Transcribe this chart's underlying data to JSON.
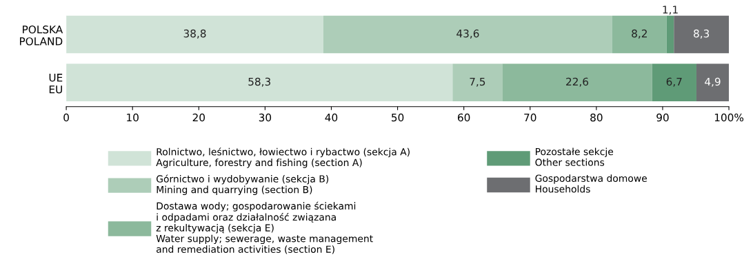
{
  "chart_data": {
    "type": "bar",
    "orientation": "horizontal",
    "stacked": true,
    "categories": [
      "POLSKA\nPOLAND",
      "UE\nEU"
    ],
    "series": [
      {
        "name": "Rolnictwo, leśnictwo, łowiectwo i rybactwo (sekcja A)\nAgriculture, forestry and fishing (section A)",
        "color": "#d0e3d7",
        "values": [
          38.8,
          58.3
        ],
        "value_labels": [
          "38,8",
          "58,3"
        ]
      },
      {
        "name": "Górnictwo i wydobywanie (sekcja B)\nMining and quarrying (section B)",
        "color": "#adcdb8",
        "values": [
          43.6,
          7.5
        ],
        "value_labels": [
          "43,6",
          "7,5"
        ]
      },
      {
        "name": "Dostawa wody; gospodarowanie ściekami\ni odpadami oraz działalność związana\nz rekultywacją (sekcja E)\nWater supply; sewerage, waste management\nand remediation activities (section E)",
        "color": "#8cb99c",
        "values": [
          8.2,
          22.6
        ],
        "value_labels": [
          "8,2",
          "22,6"
        ]
      },
      {
        "name": "Pozostałe sekcje\nOther sections",
        "color": "#5f9b77",
        "values": [
          1.1,
          6.7
        ],
        "value_labels": [
          "1,1",
          "6,7"
        ]
      },
      {
        "name": "Gospodarstwa domowe\nHouseholds",
        "color": "#6d6e71",
        "values": [
          8.3,
          4.9
        ],
        "value_labels": [
          "8,3",
          "4,9"
        ]
      }
    ],
    "xlim": [
      0,
      100
    ],
    "xticks": [
      0,
      10,
      20,
      30,
      40,
      50,
      60,
      70,
      80,
      90,
      {
        "value": 100,
        "label": "100%"
      }
    ],
    "grid": false,
    "legend": "bottom"
  }
}
